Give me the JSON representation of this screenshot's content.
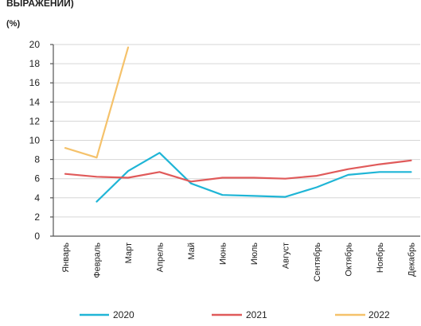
{
  "header": {
    "title": "ВЫРАЖЕНИИ)",
    "unit": "(%)"
  },
  "chart_data": {
    "type": "line",
    "title": "ВЫРАЖЕНИИ)",
    "xlabel": "",
    "ylabel": "(%)",
    "ylim": [
      0,
      20
    ],
    "yticks": [
      0,
      2,
      4,
      6,
      8,
      10,
      12,
      14,
      16,
      18,
      20
    ],
    "grid": true,
    "legend": "bottom",
    "categories": [
      "Январь",
      "Февраль",
      "Март",
      "Апрель",
      "Май",
      "Июнь",
      "Июль",
      "Август",
      "Сентябрь",
      "Октябрь",
      "Ноябрь",
      "Декабрь"
    ],
    "series": [
      {
        "name": "2020",
        "color": "#1fb5d6",
        "values": [
          null,
          3.6,
          6.8,
          8.7,
          5.5,
          4.3,
          4.2,
          4.1,
          5.1,
          6.4,
          6.7,
          6.7
        ]
      },
      {
        "name": "2021",
        "color": "#e05a5a",
        "values": [
          6.5,
          6.2,
          6.1,
          6.7,
          5.7,
          6.1,
          6.1,
          6.0,
          6.3,
          7.0,
          7.5,
          7.9
        ]
      },
      {
        "name": "2022",
        "color": "#f5c26b",
        "values": [
          9.2,
          8.2,
          19.7,
          null,
          null,
          null,
          null,
          null,
          null,
          null,
          null,
          null
        ]
      }
    ]
  }
}
